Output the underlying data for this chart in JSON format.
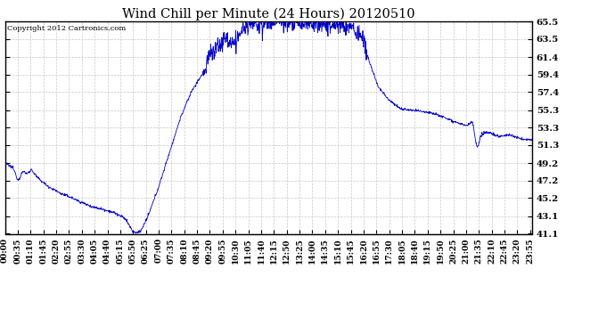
{
  "title": "Wind Chill per Minute (24 Hours) 20120510",
  "copyright_text": "Copyright 2012 Cartronics.com",
  "line_color": "#0000cc",
  "bg_color": "#ffffff",
  "grid_color": "#c8c8c8",
  "yticks": [
    41.1,
    43.1,
    45.2,
    47.2,
    49.2,
    51.3,
    53.3,
    55.3,
    57.4,
    59.4,
    61.4,
    63.5,
    65.5
  ],
  "ymin": 41.1,
  "ymax": 65.5,
  "xtick_labels": [
    "00:00",
    "00:35",
    "01:10",
    "01:45",
    "02:20",
    "02:55",
    "03:30",
    "04:05",
    "04:40",
    "05:15",
    "05:50",
    "06:25",
    "07:00",
    "07:35",
    "08:10",
    "08:45",
    "09:20",
    "09:55",
    "10:30",
    "11:05",
    "11:40",
    "12:15",
    "12:50",
    "13:25",
    "14:00",
    "14:35",
    "15:10",
    "15:45",
    "16:20",
    "16:55",
    "17:30",
    "18:05",
    "18:40",
    "19:15",
    "19:50",
    "20:25",
    "21:00",
    "21:35",
    "22:10",
    "22:45",
    "23:20",
    "23:55"
  ],
  "ctrl_t": [
    0,
    0.3,
    0.58,
    0.75,
    1.0,
    1.2,
    1.5,
    2.0,
    2.5,
    3.0,
    3.5,
    4.0,
    4.5,
    5.0,
    5.5,
    5.83,
    6.0,
    6.2,
    6.5,
    7.0,
    7.5,
    8.0,
    8.5,
    9.0,
    9.3,
    9.6,
    10.0,
    10.5,
    10.8,
    11.0,
    11.3,
    11.5,
    12.0,
    12.5,
    13.0,
    13.3,
    13.6,
    14.0,
    14.5,
    15.0,
    15.5,
    15.8,
    16.0,
    16.3,
    16.58,
    17.0,
    17.5,
    18.0,
    18.5,
    19.0,
    19.5,
    20.0,
    20.5,
    21.0,
    21.3,
    21.5,
    22.0,
    22.5,
    23.0,
    23.5,
    24.0
  ],
  "ctrl_v": [
    49.2,
    48.8,
    48.2,
    48.8,
    48.0,
    48.5,
    47.5,
    46.5,
    45.8,
    45.3,
    44.7,
    44.2,
    43.9,
    43.5,
    42.8,
    41.3,
    41.2,
    41.5,
    43.0,
    46.5,
    50.5,
    54.5,
    57.5,
    59.5,
    61.5,
    62.5,
    63.5,
    63.0,
    64.5,
    65.0,
    65.3,
    65.0,
    65.4,
    65.5,
    65.4,
    65.5,
    65.4,
    65.3,
    65.2,
    65.1,
    65.0,
    64.8,
    64.3,
    63.5,
    61.0,
    58.0,
    56.5,
    55.5,
    55.3,
    55.2,
    55.0,
    54.5,
    54.0,
    53.5,
    54.0,
    52.5,
    52.8,
    52.3,
    52.5,
    52.0,
    51.9
  ],
  "num_points": 1440,
  "figsize": [
    6.9,
    3.75
  ],
  "dpi": 100
}
